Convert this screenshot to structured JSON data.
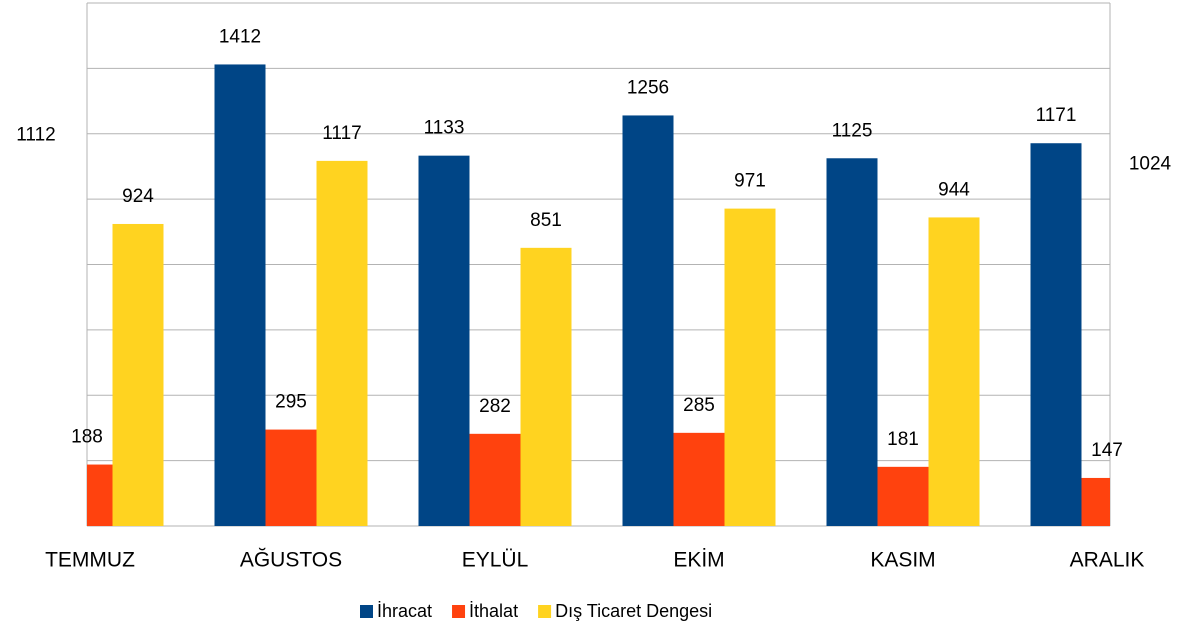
{
  "chart_data": {
    "type": "bar",
    "categories": [
      "TEMMUZ",
      "AĞUSTOS",
      "EYLÜL",
      "EKİM",
      "KASIM",
      "ARALIK"
    ],
    "series": [
      {
        "name": "İhracat",
        "color": "#004586",
        "values": [
          1112,
          1412,
          1133,
          1256,
          1125,
          1171
        ]
      },
      {
        "name": "İthalat",
        "color": "#ff420e",
        "values": [
          188,
          295,
          282,
          285,
          181,
          147
        ]
      },
      {
        "name": "Dış Ticaret Dengesi",
        "color": "#ffd320",
        "values": [
          924,
          1117,
          851,
          971,
          944,
          1024
        ]
      }
    ],
    "ylim": [
      0,
      1600
    ],
    "yticks": [
      0,
      200,
      400,
      600,
      800,
      1000,
      1200,
      1400,
      1600
    ],
    "grid": true
  }
}
